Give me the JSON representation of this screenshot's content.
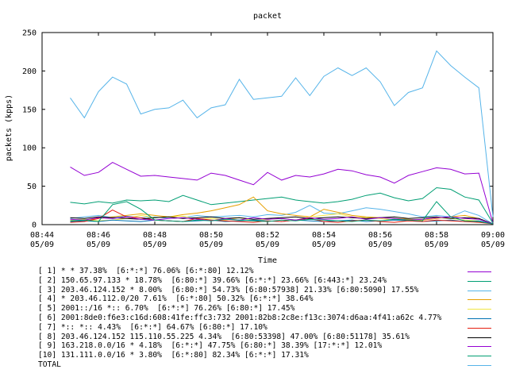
{
  "chart_data": {
    "type": "line",
    "title": "packet",
    "xlabel": "Time",
    "ylabel": "packets (kpps)",
    "ylim": [
      0,
      250
    ],
    "yticks": [
      0,
      50,
      100,
      150,
      200,
      250
    ],
    "xticks": [
      {
        "time": "08:44",
        "date": "05/09"
      },
      {
        "time": "08:46",
        "date": "05/09"
      },
      {
        "time": "08:48",
        "date": "05/09"
      },
      {
        "time": "08:50",
        "date": "05/09"
      },
      {
        "time": "08:52",
        "date": "05/09"
      },
      {
        "time": "08:54",
        "date": "05/09"
      },
      {
        "time": "08:56",
        "date": "05/09"
      },
      {
        "time": "08:58",
        "date": "05/09"
      },
      {
        "time": "09:00",
        "date": "05/09"
      }
    ],
    "x": [
      "08:45",
      "08:45:30",
      "08:46",
      "08:46:30",
      "08:47",
      "08:47:30",
      "08:48",
      "08:48:30",
      "08:49",
      "08:49:30",
      "08:50",
      "08:50:30",
      "08:51",
      "08:51:30",
      "08:52",
      "08:52:30",
      "08:53",
      "08:53:30",
      "08:54",
      "08:54:30",
      "08:55",
      "08:55:30",
      "08:56",
      "08:56:30",
      "08:57",
      "08:57:30",
      "08:58",
      "08:58:30",
      "08:59",
      "08:59:30",
      "09:00"
    ],
    "grid": false,
    "legend_position": "bottom",
    "series": [
      {
        "name": "[ 1] * * 37.38%  [6:*:*] 76.06% [6:*:80] 12.12%",
        "color": "#9400d3",
        "values": [
          75,
          64,
          68,
          81,
          72,
          63,
          64,
          62,
          60,
          58,
          67,
          64,
          58,
          52,
          68,
          58,
          64,
          62,
          66,
          72,
          70,
          65,
          62,
          54,
          64,
          69,
          74,
          72,
          66,
          67,
          2
        ]
      },
      {
        "name": "[ 2] 150.65.97.133 * 18.78%  [6:80:*] 39.66% [6:*:*] 23.66% [6:443:*] 23.24%",
        "color": "#009e73",
        "values": [
          29,
          27,
          30,
          28,
          32,
          31,
          32,
          30,
          38,
          32,
          26,
          28,
          30,
          32,
          34,
          36,
          32,
          30,
          28,
          30,
          33,
          38,
          41,
          35,
          31,
          34,
          48,
          46,
          36,
          32,
          2
        ]
      },
      {
        "name": "[ 3] 203.46.124.152 * 8.00%  [6:80:*] 54.73% [6:80:57938] 21.33% [6:80:5090] 17.55%",
        "color": "#56b4e9",
        "values": [
          8,
          10,
          12,
          9,
          11,
          9,
          10,
          8,
          9,
          12,
          10,
          11,
          12,
          10,
          13,
          12,
          16,
          25,
          15,
          14,
          18,
          22,
          20,
          17,
          14,
          10,
          12,
          10,
          18,
          12,
          1
        ]
      },
      {
        "name": "[ 4] * 203.46.112.0/20 7.61%  [6:*:80] 50.32% [6:*:*] 38.64%",
        "color": "#e69f00",
        "values": [
          5,
          6,
          8,
          10,
          12,
          14,
          12,
          10,
          13,
          15,
          18,
          22,
          26,
          36,
          18,
          14,
          12,
          10,
          20,
          16,
          12,
          10,
          9,
          8,
          7,
          6,
          8,
          10,
          12,
          8,
          1
        ]
      },
      {
        "name": "[ 5] 2001::/16 *:: 6.70%  [6:*:*] 76.26% [6:80:*] 17.45%",
        "color": "#f0e442",
        "values": [
          6,
          7,
          5,
          6,
          8,
          12,
          9,
          10,
          11,
          7,
          8,
          6,
          9,
          5,
          7,
          8,
          6,
          10,
          12,
          14,
          10,
          9,
          8,
          6,
          5,
          7,
          9,
          8,
          6,
          5,
          1
        ]
      },
      {
        "name": "[ 6] 2001:8de0:f6e3:c16d:608:41fe:ffc3:732 2001:82b8:2c8e:f13c:3074:d6aa:4f41:a62c 4.77%",
        "color": "#0072b2",
        "values": [
          4,
          5,
          4,
          6,
          5,
          4,
          6,
          5,
          4,
          5,
          6,
          4,
          5,
          6,
          5,
          4,
          6,
          5,
          4,
          5,
          6,
          4,
          5,
          6,
          5,
          4,
          5,
          6,
          4,
          5,
          1
        ]
      },
      {
        "name": "[ 7] *:: *:: 4.43%  [6:*:*] 64.67% [6:80:*] 17.10%",
        "color": "#e51e10",
        "values": [
          3,
          4,
          8,
          19,
          10,
          9,
          6,
          5,
          4,
          8,
          6,
          5,
          4,
          3,
          5,
          4,
          6,
          8,
          4,
          3,
          5,
          6,
          4,
          3,
          5,
          4,
          6,
          5,
          4,
          3,
          1
        ]
      },
      {
        "name": "[ 8] 203.46.124.152 115.110.55.225 4.34%  [6:80:53398] 47.00% [6:80:51178] 35.61%",
        "color": "#000000",
        "values": [
          9,
          8,
          10,
          9,
          8,
          7,
          9,
          10,
          8,
          9,
          10,
          8,
          9,
          7,
          8,
          9,
          10,
          8,
          9,
          10,
          9,
          8,
          9,
          10,
          8,
          9,
          10,
          8,
          9,
          8,
          1
        ]
      },
      {
        "name": "[ 9] 163.218.0.0/16 * 4.18%  [6:*:*] 47.75% [6:80:*] 38.39% [17:*:*] 12.01%",
        "color": "#9400d3",
        "values": [
          7,
          6,
          9,
          8,
          10,
          7,
          6,
          8,
          9,
          7,
          5,
          8,
          6,
          9,
          7,
          8,
          6,
          9,
          7,
          8,
          10,
          7,
          9,
          8,
          6,
          7,
          9,
          10,
          8,
          7,
          1
        ]
      },
      {
        "name": "[10] 131.111.0.0/16 * 3.80%  [6:*:80] 82.34% [6:*:*] 17.31%",
        "color": "#009e73",
        "values": [
          5,
          6,
          4,
          26,
          30,
          20,
          6,
          5,
          4,
          6,
          5,
          7,
          6,
          5,
          4,
          6,
          5,
          7,
          6,
          5,
          4,
          6,
          5,
          7,
          6,
          5,
          30,
          10,
          5,
          4,
          1
        ]
      },
      {
        "name": "TOTAL",
        "color": "#56b4e9",
        "values": [
          165,
          139,
          173,
          192,
          183,
          144,
          150,
          152,
          162,
          139,
          152,
          156,
          189,
          163,
          165,
          167,
          191,
          168,
          193,
          204,
          194,
          204,
          186,
          155,
          172,
          178,
          226,
          207,
          192,
          178,
          10
        ]
      }
    ]
  }
}
